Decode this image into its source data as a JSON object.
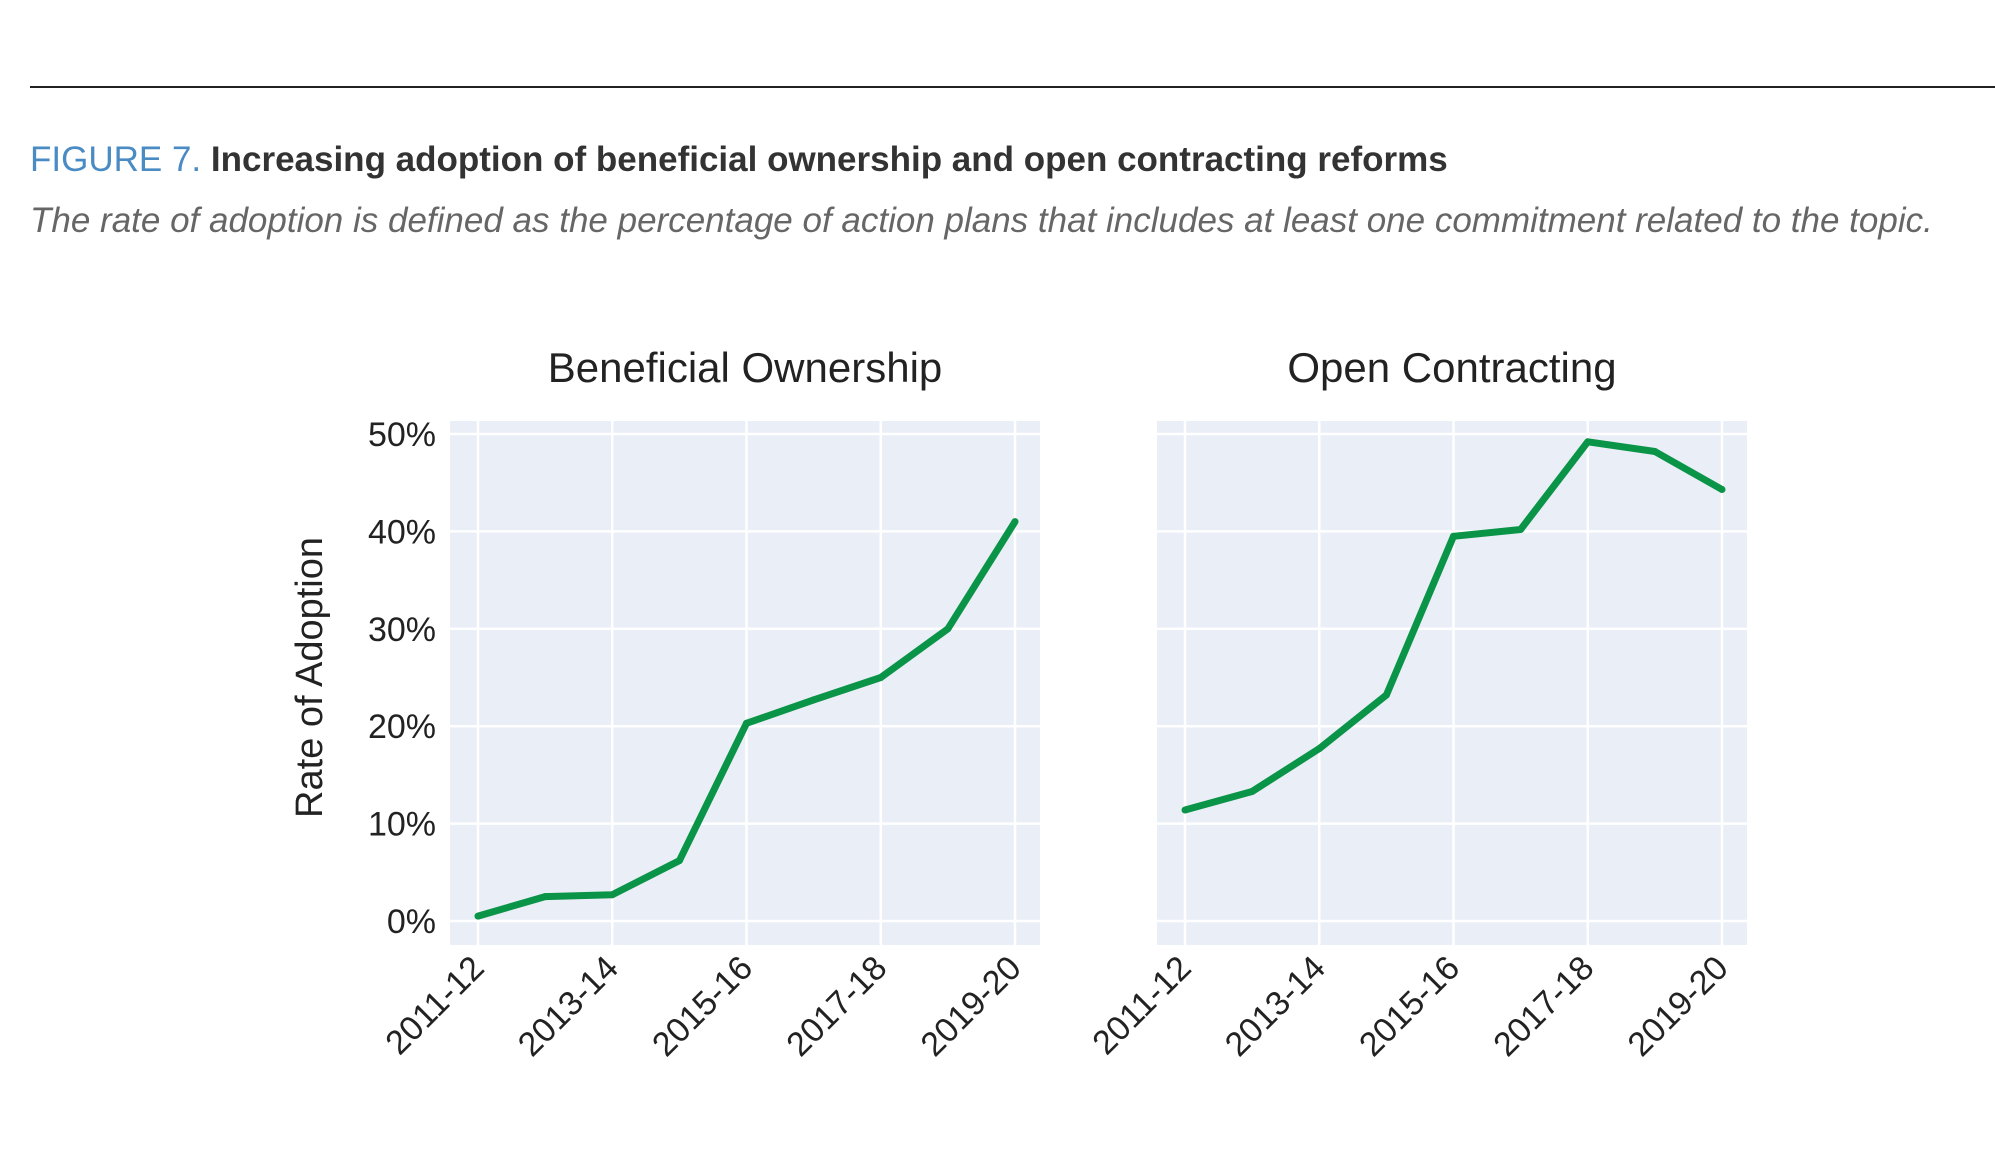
{
  "figure": {
    "label": "FIGURE 7.",
    "title": "Increasing adoption of beneficial ownership and open contracting reforms",
    "description": "The rate of adoption is defined as the percentage of action plans that includes at least one commitment related to the topic."
  },
  "colors": {
    "line": "#0a9447",
    "panel_background": "#eaeef7",
    "grid": "#ffffff",
    "figure_label": "#4a8bc4"
  },
  "chart_data": [
    {
      "type": "line",
      "title": "Beneficial Ownership",
      "ylabel": "Rate of Adoption",
      "xlabel": "",
      "x": [
        "2011-12",
        "2012-13",
        "2013-14",
        "2014-15",
        "2015-16",
        "2016-17",
        "2017-18",
        "2018-19",
        "2019-20"
      ],
      "x_tick_labels": [
        "2011-12",
        "2013-14",
        "2015-16",
        "2017-18",
        "2019-20"
      ],
      "y_tick_labels": [
        "0%",
        "10%",
        "20%",
        "30%",
        "40%",
        "50%"
      ],
      "ylim": [
        0,
        50
      ],
      "y_unit": "%",
      "grid": true,
      "series": [
        {
          "values": [
            0.5,
            2.5,
            2.7,
            6.2,
            20.3,
            22.7,
            25.0,
            30.0,
            41.0
          ]
        }
      ]
    },
    {
      "type": "line",
      "title": "Open Contracting",
      "ylabel": "",
      "xlabel": "",
      "x": [
        "2011-12",
        "2012-13",
        "2013-14",
        "2014-15",
        "2015-16",
        "2016-17",
        "2017-18",
        "2018-19",
        "2019-20"
      ],
      "x_tick_labels": [
        "2011-12",
        "2013-14",
        "2015-16",
        "2017-18",
        "2019-20"
      ],
      "y_tick_labels": [],
      "ylim": [
        0,
        50
      ],
      "y_unit": "%",
      "grid": true,
      "series": [
        {
          "values": [
            11.4,
            13.3,
            17.7,
            23.2,
            39.5,
            40.2,
            49.2,
            48.2,
            44.3
          ]
        }
      ]
    }
  ]
}
